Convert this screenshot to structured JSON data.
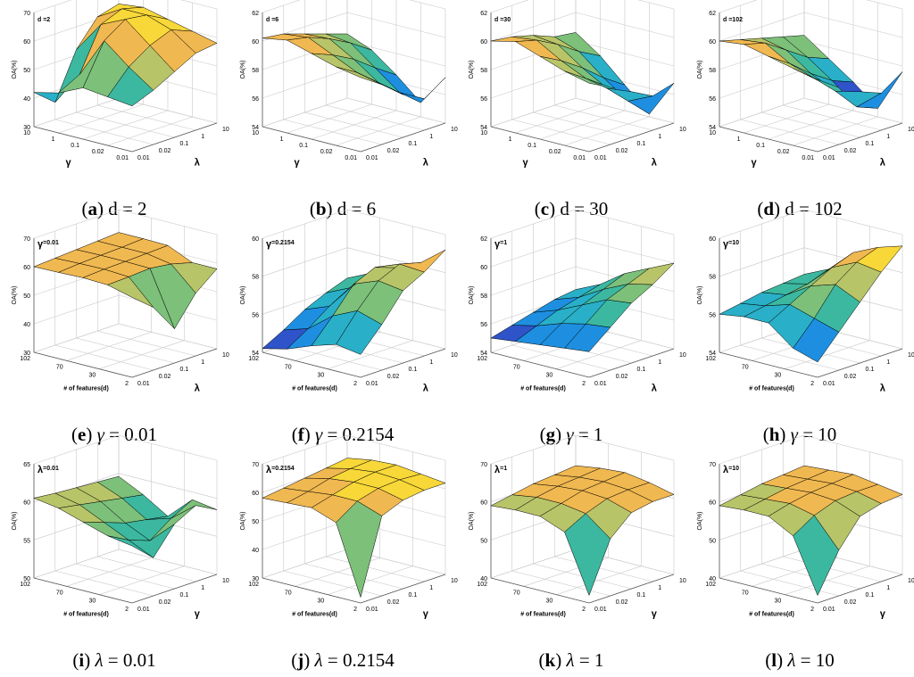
{
  "colors": {
    "grid": "#c8c8c8",
    "edge": "#000000",
    "palette": [
      "#2c2b84",
      "#2f53c8",
      "#1e8fe0",
      "#29b0c8",
      "#3cb8a0",
      "#7cc07a",
      "#b8c468",
      "#f0b850",
      "#f8d838",
      "#f8f828"
    ]
  },
  "chart_data": [
    {
      "type": "surface3d",
      "title": "d =2",
      "caption": {
        "letter": "a",
        "sym": "",
        "text": "d = 2"
      },
      "ylabel": "OA(%)",
      "zticks": [
        "30",
        "40",
        "50",
        "60",
        "70"
      ],
      "zlim": [
        30,
        70
      ],
      "left_axis": {
        "label": "γ",
        "ticks": [
          "10",
          "1",
          "0.1",
          "0.02",
          "0.01"
        ]
      },
      "right_axis": {
        "label": "λ",
        "ticks": [
          "0.01",
          "0.02",
          "0.1",
          "1",
          "10"
        ]
      },
      "surface": [
        [
          42,
          36,
          52,
          61,
          63
        ],
        [
          44,
          48,
          63,
          66,
          64
        ],
        [
          48,
          62,
          67,
          66,
          62
        ],
        [
          47,
          55,
          60,
          63,
          60
        ],
        [
          46,
          49,
          53,
          57,
          58
        ]
      ]
    },
    {
      "type": "surface3d",
      "title": "d =6",
      "caption": {
        "letter": "b",
        "sym": "",
        "text": "d = 6"
      },
      "ylabel": "OA(%)",
      "zticks": [
        "54",
        "56",
        "58",
        "60",
        "62"
      ],
      "zlim": [
        54,
        62
      ],
      "left_axis": {
        "label": "γ",
        "ticks": [
          "10",
          "1",
          "0.1",
          "0.02",
          "0.01"
        ]
      },
      "right_axis": {
        "label": "λ",
        "ticks": [
          "0.01",
          "0.02",
          "0.1",
          "1",
          "10"
        ]
      },
      "surface": [
        [
          60.2,
          60,
          59.5,
          59,
          58.5
        ],
        [
          60.5,
          60.2,
          59.6,
          58.8,
          57.8
        ],
        [
          60,
          59.4,
          58.6,
          57.5,
          56.5
        ],
        [
          59.5,
          58.6,
          57.4,
          56.2,
          55
        ],
        [
          59.2,
          58.2,
          57,
          56.2,
          57.2
        ]
      ]
    },
    {
      "type": "surface3d",
      "title": "d =30",
      "caption": {
        "letter": "c",
        "sym": "",
        "text": "d = 30"
      },
      "ylabel": "OA(%)",
      "zticks": [
        "54",
        "56",
        "58",
        "60",
        "62"
      ],
      "zlim": [
        54,
        62
      ],
      "left_axis": {
        "label": "γ",
        "ticks": [
          "10",
          "1",
          "0.1",
          "0.02",
          "0.01"
        ]
      },
      "right_axis": {
        "label": "λ",
        "ticks": [
          "0.01",
          "0.02",
          "0.1",
          "1",
          "10"
        ]
      },
      "surface": [
        [
          60,
          59.8,
          59.4,
          58.8,
          58.6
        ],
        [
          60.4,
          60,
          59.2,
          58.2,
          57.4
        ],
        [
          59.8,
          59,
          58,
          56.8,
          55.8
        ],
        [
          59.2,
          58.2,
          57,
          55.6,
          54.2
        ],
        [
          58.8,
          58,
          57.2,
          56.4,
          56.8
        ]
      ]
    },
    {
      "type": "surface3d",
      "title": "d =102",
      "caption": {
        "letter": "d",
        "sym": "",
        "text": "d = 102"
      },
      "ylabel": "OA(%)",
      "zticks": [
        "54",
        "56",
        "58",
        "60",
        "62"
      ],
      "zlim": [
        54,
        62
      ],
      "left_axis": {
        "label": "γ",
        "ticks": [
          "10",
          "1",
          "0.1",
          "0.02",
          "0.01"
        ]
      },
      "right_axis": {
        "label": "λ",
        "ticks": [
          "0.01",
          "0.02",
          "0.1",
          "1",
          "10"
        ]
      },
      "surface": [
        [
          60,
          59.6,
          59.2,
          58.8,
          58.4
        ],
        [
          60.2,
          59.8,
          58.8,
          57.8,
          57.2
        ],
        [
          59.8,
          58.8,
          57.6,
          56.6,
          56
        ],
        [
          59.4,
          58.2,
          56.8,
          55.2,
          54.6
        ],
        [
          59,
          58,
          57.2,
          56.6,
          57.6
        ]
      ]
    },
    {
      "type": "surface3d",
      "title": "=0.01",
      "title_sym": "γ",
      "caption": {
        "letter": "e",
        "sym": "γ",
        "text": " = 0.01"
      },
      "ylabel": "OA(%)",
      "zticks": [
        "30",
        "40",
        "50",
        "60",
        "70"
      ],
      "zlim": [
        30,
        70
      ],
      "left_axis": {
        "label": "# of features(d)",
        "ticks": [
          "102",
          "70",
          "30",
          "2"
        ]
      },
      "right_axis": {
        "label": "λ",
        "ticks": [
          "0.01",
          "0.02",
          "0.1",
          "1",
          "10"
        ]
      },
      "surface": [
        [
          60,
          60.5,
          61,
          61.5,
          62
        ],
        [
          60.2,
          60.8,
          61.2,
          61.5,
          62
        ],
        [
          60.5,
          61,
          61.2,
          61.5,
          61.8
        ],
        [
          60.2,
          60.5,
          61,
          60,
          58
        ],
        [
          58,
          52,
          42,
          52,
          58
        ]
      ]
    },
    {
      "type": "surface3d",
      "title": "=0.2154",
      "title_sym": "γ",
      "caption": {
        "letter": "f",
        "sym": "γ",
        "text": " = 0.2154"
      },
      "ylabel": "OA(%)",
      "zticks": [
        "54",
        "56",
        "58",
        "60"
      ],
      "zlim": [
        54,
        60
      ],
      "left_axis": {
        "label": "# of features(d)",
        "ticks": [
          "102",
          "70",
          "30",
          "2"
        ]
      },
      "right_axis": {
        "label": "λ",
        "ticks": [
          "0.01",
          "0.02",
          "0.1",
          "1",
          "10"
        ]
      },
      "surface": [
        [
          54.2,
          54.8,
          55.5,
          56,
          56.4
        ],
        [
          54.5,
          55.2,
          56,
          56.6,
          57
        ],
        [
          55,
          56.2,
          57.5,
          58,
          57.6
        ],
        [
          55.4,
          56.8,
          58,
          58.5,
          58.2
        ],
        [
          55.2,
          56.4,
          57.8,
          58.4,
          59.2
        ]
      ]
    },
    {
      "type": "surface3d",
      "title": "=1",
      "title_sym": "γ",
      "caption": {
        "letter": "g",
        "sym": "γ",
        "text": " = 1"
      },
      "ylabel": "OA(%)",
      "zticks": [
        "54",
        "56",
        "58",
        "60",
        "62"
      ],
      "zlim": [
        54,
        62
      ],
      "left_axis": {
        "label": "# of features(d)",
        "ticks": [
          "102",
          "70",
          "30",
          "2"
        ]
      },
      "right_axis": {
        "label": "λ",
        "ticks": [
          "0.01",
          "0.02",
          "0.1",
          "1",
          "10"
        ]
      },
      "surface": [
        [
          55,
          55.4,
          55.8,
          56.2,
          56.4
        ],
        [
          55.2,
          55.8,
          56.4,
          56.8,
          57.2
        ],
        [
          55.4,
          56.4,
          57.2,
          57.8,
          58.4
        ],
        [
          55.6,
          56.8,
          58,
          58.6,
          59.2
        ],
        [
          55.8,
          57,
          58.2,
          59,
          60
        ]
      ]
    },
    {
      "type": "surface3d",
      "title": "=10",
      "title_sym": "γ",
      "caption": {
        "letter": "h",
        "sym": "γ",
        "text": " = 10"
      },
      "ylabel": "OA(%)",
      "zticks": [
        "54",
        "56",
        "58",
        "60"
      ],
      "zlim": [
        54,
        60
      ],
      "left_axis": {
        "label": "# of features(d)",
        "ticks": [
          "102",
          "70",
          "30",
          "2"
        ]
      },
      "right_axis": {
        "label": "λ",
        "ticks": [
          "0.01",
          "0.02",
          "0.1",
          "1",
          "10"
        ]
      },
      "surface": [
        [
          56,
          56.2,
          56.4,
          56.5,
          56.6
        ],
        [
          56.2,
          56.4,
          56.6,
          56.8,
          57.2
        ],
        [
          56.2,
          56.8,
          57.4,
          58,
          58.4
        ],
        [
          55.2,
          56.4,
          57.8,
          58.6,
          59
        ],
        [
          54.8,
          56,
          57.2,
          58.4,
          59.4
        ]
      ]
    },
    {
      "type": "surface3d",
      "title": "=0.01",
      "title_sym": "λ",
      "caption": {
        "letter": "i",
        "sym": "λ",
        "text": " = 0.01"
      },
      "ylabel": "OA(%)",
      "zticks": [
        "50",
        "55",
        "60",
        "65"
      ],
      "zlim": [
        50,
        65
      ],
      "left_axis": {
        "label": "# of features(d)",
        "ticks": [
          "102",
          "70",
          "30",
          "2"
        ]
      },
      "right_axis": {
        "label": "γ",
        "ticks": [
          "0.01",
          "0.02",
          "0.1",
          "1",
          "10"
        ]
      },
      "surface": [
        [
          60.5,
          60.2,
          60,
          59.8,
          59.6
        ],
        [
          60,
          59.5,
          59,
          58.5,
          58
        ],
        [
          59,
          58,
          57,
          56.5,
          56
        ],
        [
          58,
          56.5,
          55.5,
          57.5,
          59
        ],
        [
          57.5,
          55,
          58.5,
          60,
          58.5
        ]
      ]
    },
    {
      "type": "surface3d",
      "title": "=0.2154",
      "title_sym": "λ",
      "caption": {
        "letter": "j",
        "sym": "λ",
        "text": " = 0.2154"
      },
      "ylabel": "OA(%)",
      "zticks": [
        "30",
        "40",
        "50",
        "60",
        "70"
      ],
      "zlim": [
        30,
        70
      ],
      "left_axis": {
        "label": "# of features(d)",
        "ticks": [
          "102",
          "70",
          "30",
          "2"
        ]
      },
      "right_axis": {
        "label": "γ",
        "ticks": [
          "0.01",
          "0.02",
          "0.1",
          "1",
          "10"
        ]
      },
      "surface": [
        [
          58,
          59,
          60,
          61,
          62
        ],
        [
          58.5,
          60,
          62,
          63,
          63.5
        ],
        [
          59,
          61,
          63,
          64,
          64
        ],
        [
          56,
          61,
          63,
          63.5,
          63
        ],
        [
          32,
          58,
          61,
          62,
          62
        ]
      ]
    },
    {
      "type": "surface3d",
      "title": "=1",
      "title_sym": "λ",
      "caption": {
        "letter": "k",
        "sym": "λ",
        "text": " = 1"
      },
      "ylabel": "OA(%)",
      "zticks": [
        "40",
        "50",
        "60",
        "70"
      ],
      "zlim": [
        40,
        70
      ],
      "left_axis": {
        "label": "# of features(d)",
        "ticks": [
          "102",
          "70",
          "30",
          "2"
        ]
      },
      "right_axis": {
        "label": "γ",
        "ticks": [
          "0.01",
          "0.02",
          "0.1",
          "1",
          "10"
        ]
      },
      "surface": [
        [
          59,
          60,
          61,
          61.5,
          62
        ],
        [
          59.5,
          61,
          62,
          62.5,
          63
        ],
        [
          59.5,
          61,
          62.5,
          63,
          63.5
        ],
        [
          57,
          60,
          62,
          62.5,
          62.5
        ],
        [
          42,
          55,
          60,
          61,
          61
        ]
      ]
    },
    {
      "type": "surface3d",
      "title": "=10",
      "title_sym": "λ",
      "caption": {
        "letter": "l",
        "sym": "λ",
        "text": " = 10"
      },
      "ylabel": "OA(%)",
      "zticks": [
        "40",
        "50",
        "60",
        "70"
      ],
      "zlim": [
        40,
        70
      ],
      "left_axis": {
        "label": "# of features(d)",
        "ticks": [
          "102",
          "70",
          "30",
          "2"
        ]
      },
      "right_axis": {
        "label": "γ",
        "ticks": [
          "0.01",
          "0.02",
          "0.1",
          "1",
          "10"
        ]
      },
      "surface": [
        [
          59,
          60,
          61,
          61.5,
          62
        ],
        [
          59.5,
          60.5,
          61.5,
          62,
          62.5
        ],
        [
          59.5,
          61,
          62,
          62.5,
          63
        ],
        [
          56,
          59.5,
          61.5,
          62,
          62
        ],
        [
          42,
          52,
          59,
          60.5,
          61
        ]
      ]
    }
  ]
}
